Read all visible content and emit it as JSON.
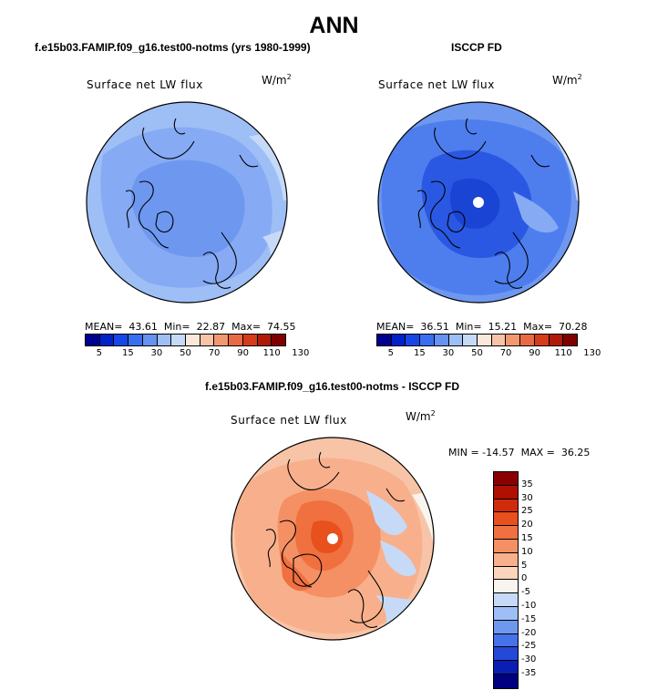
{
  "main_title": "ANN",
  "panels": [
    {
      "title": "f.e15b03.FAMIP.f09_g16.test00-notms (yrs 1980-1999)",
      "variable": "Surface net LW flux",
      "units": "W/m",
      "units_exp": "2",
      "stats": "MEAN=  43.61  Min=  22.87  Max=  74.55",
      "colorbar": {
        "labels": [
          "5",
          "15",
          "30",
          "50",
          "70",
          "90",
          "110",
          "130"
        ],
        "colors": [
          "#000090",
          "#0022c8",
          "#1646e6",
          "#3a6ef0",
          "#6692f0",
          "#9ebef6",
          "#c6daf8",
          "#fbe8dc",
          "#f8c4a8",
          "#f29870",
          "#e86a44",
          "#d43c1c",
          "#b01a08",
          "#800000"
        ]
      }
    },
    {
      "title": "ISCCP FD",
      "variable": "Surface net LW flux",
      "units": "W/m",
      "units_exp": "2",
      "stats": "MEAN=  36.51  Min=  15.21  Max=  70.28",
      "colorbar": {
        "labels": [
          "5",
          "15",
          "30",
          "50",
          "70",
          "90",
          "110",
          "130"
        ],
        "colors": [
          "#000090",
          "#0022c8",
          "#1646e6",
          "#3a6ef0",
          "#6692f0",
          "#9ebef6",
          "#c6daf8",
          "#fbe8dc",
          "#f8c4a8",
          "#f29870",
          "#e86a44",
          "#d43c1c",
          "#b01a08",
          "#800000"
        ]
      }
    },
    {
      "title": "f.e15b03.FAMIP.f09_g16.test00-notms - ISCCP FD",
      "variable": "Surface net LW flux",
      "units": "W/m",
      "units_exp": "2",
      "stats": "MIN = -14.57  MAX =  36.25",
      "colorbar": {
        "labels": [
          "35",
          "30",
          "25",
          "20",
          "15",
          "10",
          "5",
          "0",
          "-5",
          "-10",
          "-15",
          "-20",
          "-25",
          "-30",
          "-35"
        ],
        "colors": [
          "#8a0000",
          "#b01000",
          "#d02c0c",
          "#e8501e",
          "#f07040",
          "#f49064",
          "#f8b08c",
          "#fdd4bc",
          "#f8f4ee",
          "#c6daf8",
          "#9ebef6",
          "#6e98f0",
          "#4672ea",
          "#2448d8",
          "#0a1eb4",
          "#000080"
        ]
      }
    }
  ]
}
